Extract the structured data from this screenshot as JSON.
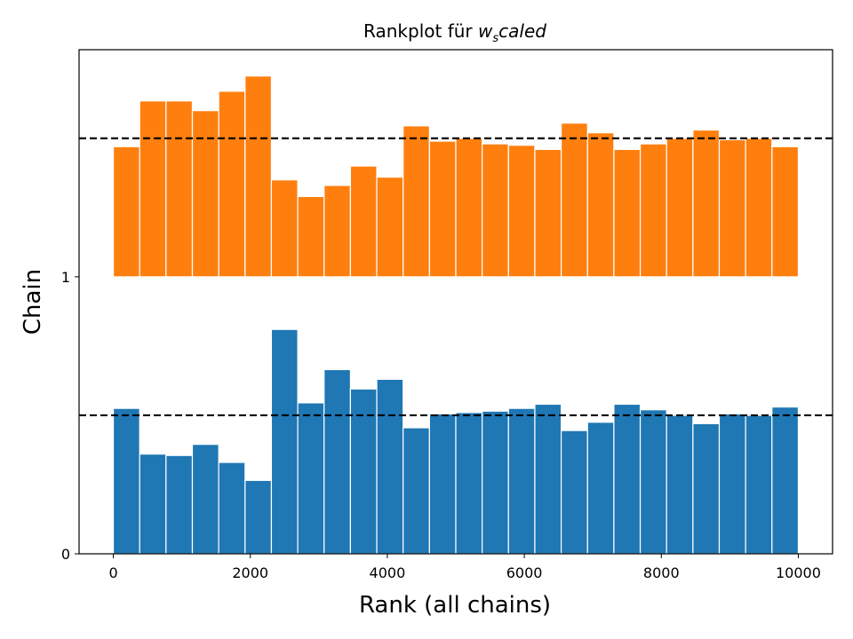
{
  "chart_data": {
    "type": "bar",
    "title": {
      "prefix": "Rankplot für ",
      "var_main": "w",
      "var_sub": "s",
      "var_rest": "caled"
    },
    "xlabel": "Rank (all chains)",
    "ylabel": "Chain",
    "xlim": [
      -500,
      10500
    ],
    "ylim": [
      0,
      1.82
    ],
    "xticks": [
      {
        "value": 0,
        "label": "0"
      },
      {
        "value": 2000,
        "label": "2000"
      },
      {
        "value": 4000,
        "label": "4000"
      },
      {
        "value": 6000,
        "label": "6000"
      },
      {
        "value": 8000,
        "label": "8000"
      },
      {
        "value": 10000,
        "label": "10000"
      }
    ],
    "yticks": [
      {
        "value": 0,
        "label": "0"
      },
      {
        "value": 1,
        "label": "1"
      }
    ],
    "bin_edges": [
      0,
      384.6,
      769.2,
      1153.8,
      1538.5,
      1923.1,
      2307.7,
      2692.3,
      3076.9,
      3461.5,
      3846.2,
      4230.8,
      4615.4,
      5000,
      5384.6,
      5769.2,
      6153.8,
      6538.5,
      6923.1,
      7307.7,
      7692.3,
      8076.9,
      8461.5,
      8846.2,
      9230.8,
      9615.4,
      10000
    ],
    "series": [
      {
        "chain": 0,
        "color": "#1f77b4",
        "reference_line": 0.5,
        "values": [
          0.525,
          0.36,
          0.355,
          0.395,
          0.33,
          0.265,
          0.81,
          0.545,
          0.665,
          0.595,
          0.63,
          0.455,
          0.505,
          0.51,
          0.515,
          0.525,
          0.54,
          0.445,
          0.475,
          0.54,
          0.52,
          0.5,
          0.47,
          0.505,
          0.5,
          0.53
        ]
      },
      {
        "chain": 1,
        "color": "#ff7f0e",
        "reference_line": 1.5,
        "values": [
          1.47,
          1.635,
          1.635,
          1.6,
          1.67,
          1.725,
          1.35,
          1.29,
          1.33,
          1.4,
          1.36,
          1.545,
          1.49,
          1.5,
          1.48,
          1.475,
          1.46,
          1.555,
          1.52,
          1.46,
          1.48,
          1.5,
          1.53,
          1.495,
          1.5,
          1.47
        ]
      }
    ],
    "reference_line_style": "dashed",
    "grid": false
  }
}
